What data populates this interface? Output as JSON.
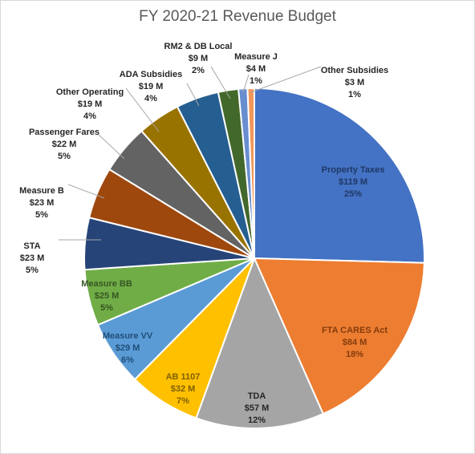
{
  "chart_data": {
    "type": "pie",
    "title": "FY 2020-21 Revenue Budget",
    "slices": [
      {
        "name": "Property Taxes",
        "value": 119,
        "value_label": "$119 M",
        "percent_label": "25%",
        "color": "#4472C4"
      },
      {
        "name": "FTA CARES Act",
        "value": 84,
        "value_label": "$84 M",
        "percent_label": "18%",
        "color": "#ED7D31"
      },
      {
        "name": "TDA",
        "value": 57,
        "value_label": "$57 M",
        "percent_label": "12%",
        "color": "#A5A5A5"
      },
      {
        "name": "AB 1107",
        "value": 32,
        "value_label": "$32 M",
        "percent_label": "7%",
        "color": "#FFC000"
      },
      {
        "name": "Measure VV",
        "value": 29,
        "value_label": "$29 M",
        "percent_label": "6%",
        "color": "#5B9BD5"
      },
      {
        "name": "Measure BB",
        "value": 25,
        "value_label": "$25 M",
        "percent_label": "5%",
        "color": "#70AD47"
      },
      {
        "name": "STA",
        "value": 23,
        "value_label": "$23 M",
        "percent_label": "5%",
        "color": "#264478"
      },
      {
        "name": "Measure B",
        "value": 23,
        "value_label": "$23 M",
        "percent_label": "5%",
        "color": "#9E480E"
      },
      {
        "name": "Passenger Fares",
        "value": 22,
        "value_label": "$22 M",
        "percent_label": "5%",
        "color": "#636363"
      },
      {
        "name": "Other Operating",
        "value": 19,
        "value_label": "$19 M",
        "percent_label": "4%",
        "color": "#997300"
      },
      {
        "name": "ADA Subsidies",
        "value": 19,
        "value_label": "$19 M",
        "percent_label": "4%",
        "color": "#255E91"
      },
      {
        "name": "RM2 & DB Local",
        "value": 9,
        "value_label": "$9 M",
        "percent_label": "2%",
        "color": "#43682B"
      },
      {
        "name": "Measure J",
        "value": 4,
        "value_label": "$4 M",
        "percent_label": "1%",
        "color": "#698ED0"
      },
      {
        "name": "Other Subsidies",
        "value": 3,
        "value_label": "$3 M",
        "percent_label": "1%",
        "color": "#F1975A"
      }
    ]
  }
}
